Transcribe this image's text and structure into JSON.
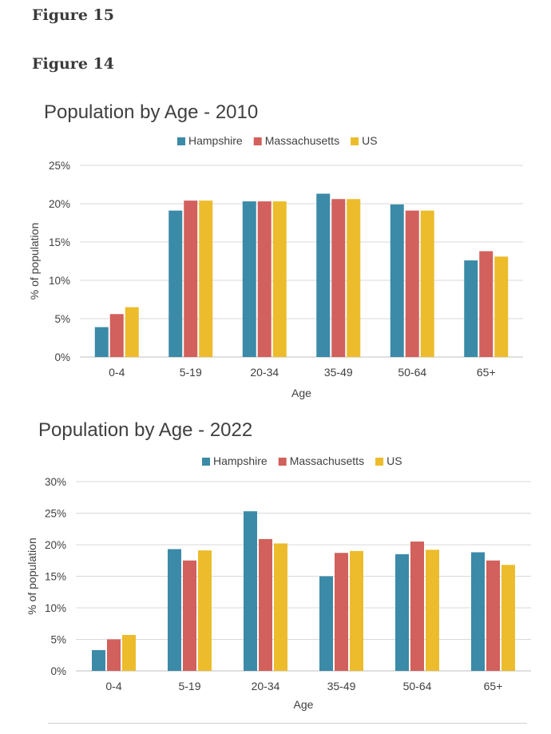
{
  "headings": {
    "figure15": "Figure 15",
    "figure14": "Figure 14"
  },
  "colors": {
    "Hampshire": "#3b8aa8",
    "Massachusetts": "#d2605c",
    "US": "#ecbc2c"
  },
  "chart_data": [
    {
      "type": "bar",
      "title": "Population by Age - 2010",
      "xlabel": "Age",
      "ylabel": "% of population",
      "categories": [
        "0-4",
        "5-19",
        "20-34",
        "35-49",
        "50-64",
        "65+"
      ],
      "ylim": [
        0,
        25
      ],
      "yticks": [
        0,
        5,
        10,
        15,
        20,
        25
      ],
      "grid": true,
      "legend": "top-center",
      "series": [
        {
          "name": "Hampshire",
          "values": [
            3.9,
            19.1,
            20.3,
            21.3,
            19.9,
            12.6
          ]
        },
        {
          "name": "Massachusetts",
          "values": [
            5.6,
            20.4,
            20.3,
            20.6,
            19.1,
            13.8
          ]
        },
        {
          "name": "US",
          "values": [
            6.5,
            20.4,
            20.3,
            20.6,
            19.1,
            13.1
          ]
        }
      ]
    },
    {
      "type": "bar",
      "title": "Population by Age - 2022",
      "xlabel": "Age",
      "ylabel": "% of population",
      "categories": [
        "0-4",
        "5-19",
        "20-34",
        "35-49",
        "50-64",
        "65+"
      ],
      "ylim": [
        0,
        30
      ],
      "yticks": [
        0,
        5,
        10,
        15,
        20,
        25,
        30
      ],
      "grid": true,
      "legend": "top-center",
      "series": [
        {
          "name": "Hampshire",
          "values": [
            3.3,
            19.3,
            25.3,
            15.0,
            18.5,
            18.8
          ]
        },
        {
          "name": "Massachusetts",
          "values": [
            5.0,
            17.5,
            20.9,
            18.7,
            20.5,
            17.5
          ]
        },
        {
          "name": "US",
          "values": [
            5.7,
            19.1,
            20.2,
            19.0,
            19.2,
            16.8
          ]
        }
      ]
    }
  ]
}
